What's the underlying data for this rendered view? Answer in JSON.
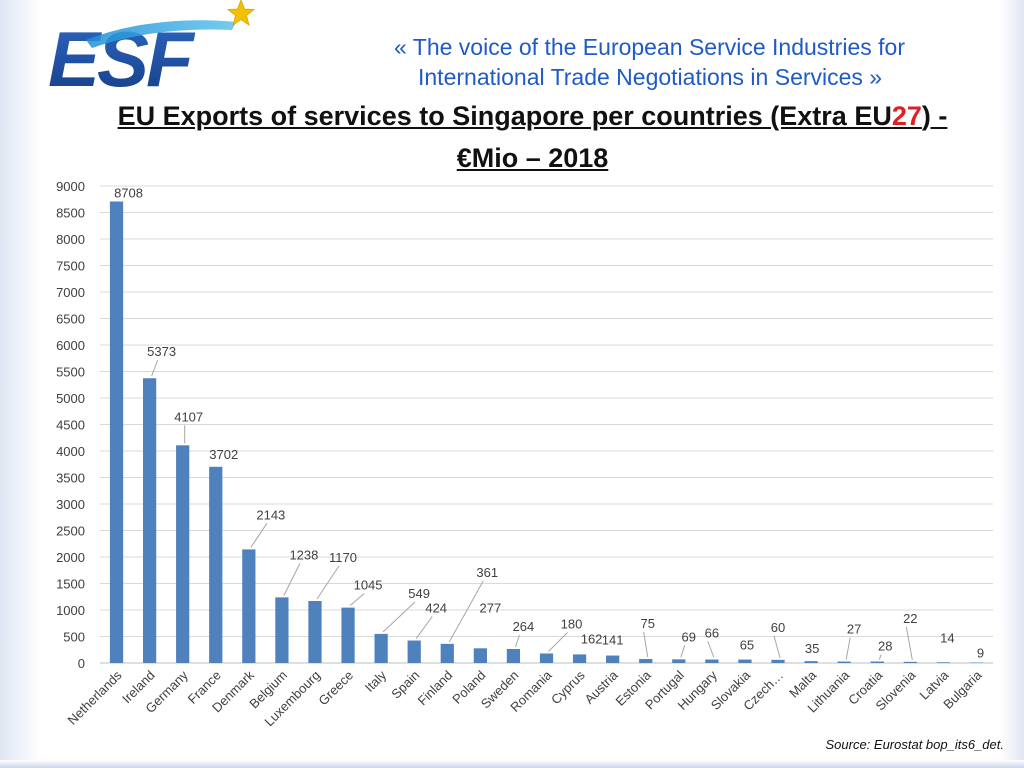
{
  "header": {
    "tagline_line1": "« The voice of the European Service Industries for",
    "tagline_line2": "International Trade Negotiations in Services »",
    "title_part1": "EU Exports of services to Singapore per countries (Extra EU",
    "title_part2": "27",
    "title_part3": ") -",
    "title_line2": "€Mio – 2018"
  },
  "logo": {
    "text": "ESF",
    "star_color": "#f2c200",
    "primary_color": "#1c4fa0",
    "accent_color": "#29a8e0"
  },
  "source": "Source: Eurostat bop_its6_det.",
  "colors": {
    "bar": "#4f81bd",
    "grid": "#d9d9d9",
    "text": "#404040",
    "title": "#111111",
    "tagline": "#1f5bc6",
    "title_highlight": "#e02020"
  },
  "chart_data": {
    "type": "bar",
    "title": "EU Exports of services to Singapore per countries (Extra EU27) - €Mio – 2018",
    "xlabel": "",
    "ylabel": "",
    "ylim": [
      0,
      9000
    ],
    "yticks": [
      0,
      500,
      1000,
      1500,
      2000,
      2500,
      3000,
      3500,
      4000,
      4500,
      5000,
      5500,
      6000,
      6500,
      7000,
      7500,
      8000,
      8500,
      9000
    ],
    "grid": true,
    "categories": [
      "Netherlands",
      "Ireland",
      "Germany",
      "France",
      "Denmark",
      "Belgium",
      "Luxembourg",
      "Greece",
      "Italy",
      "Spain",
      "Finland",
      "Poland",
      "Sweden",
      "Romania",
      "Cyprus",
      "Austria",
      "Estonia",
      "Portugal",
      "Hungary",
      "Slovakia",
      "Czech…",
      "Malta",
      "Lithuania",
      "Croatia",
      "Slovenia",
      "Latvia",
      "Bulgaria"
    ],
    "values": [
      8708,
      5373,
      4107,
      3702,
      2143,
      1238,
      1170,
      1045,
      549,
      424,
      361,
      277,
      264,
      180,
      162,
      141,
      75,
      69,
      66,
      65,
      60,
      35,
      27,
      28,
      22,
      14,
      9
    ],
    "data_labels": [
      "8708",
      "5373",
      "4107",
      "3702",
      "2143",
      "1238",
      "1170",
      "1045",
      "549",
      "424",
      "361",
      "277",
      "264",
      "180",
      "162",
      "141",
      "75",
      "69",
      "66",
      "65",
      "60",
      "35",
      "27",
      "28",
      "22",
      "14",
      "9"
    ]
  }
}
